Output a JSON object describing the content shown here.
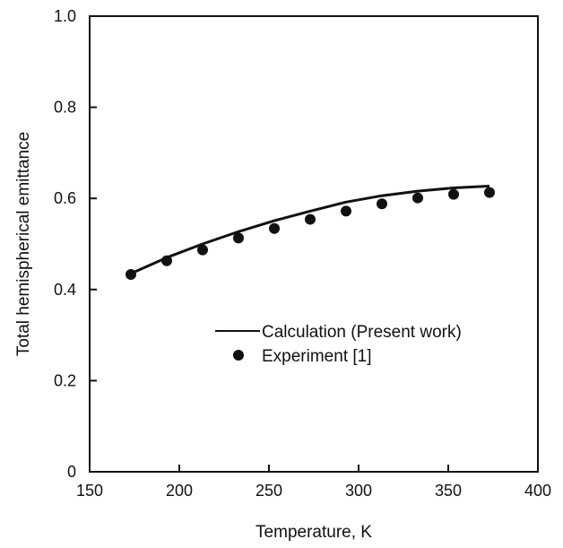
{
  "chart_data": {
    "type": "line",
    "title": "",
    "xlabel": "Temperature, K",
    "ylabel": "Total hemispherical emittance",
    "xlim": [
      150,
      400
    ],
    "ylim": [
      0,
      1.0
    ],
    "x_ticks": [
      150,
      200,
      250,
      300,
      350,
      400
    ],
    "y_ticks": [
      0,
      0.2,
      0.4,
      0.6,
      0.8,
      1.0
    ],
    "x_tick_labels": [
      "150",
      "200",
      "250",
      "300",
      "350",
      "400"
    ],
    "y_tick_labels": [
      "0",
      "0.2",
      "0.4",
      "0.6",
      "0.8",
      "1.0"
    ],
    "grid": false,
    "legend_position": "center-right",
    "series": [
      {
        "name": "Calculation (Present work)",
        "style": "line",
        "color": "#111111",
        "x": [
          173,
          193,
          213,
          233,
          253,
          273,
          293,
          313,
          333,
          353,
          373
        ],
        "y": [
          0.435,
          0.47,
          0.5,
          0.527,
          0.551,
          0.572,
          0.592,
          0.606,
          0.616,
          0.623,
          0.627
        ]
      },
      {
        "name": "Experiment [1]",
        "style": "marker",
        "color": "#111111",
        "x": [
          173,
          193,
          213,
          233,
          253,
          273,
          293,
          313,
          333,
          353,
          373
        ],
        "y": [
          0.433,
          0.463,
          0.487,
          0.513,
          0.534,
          0.554,
          0.572,
          0.588,
          0.601,
          0.609,
          0.613
        ]
      }
    ]
  }
}
